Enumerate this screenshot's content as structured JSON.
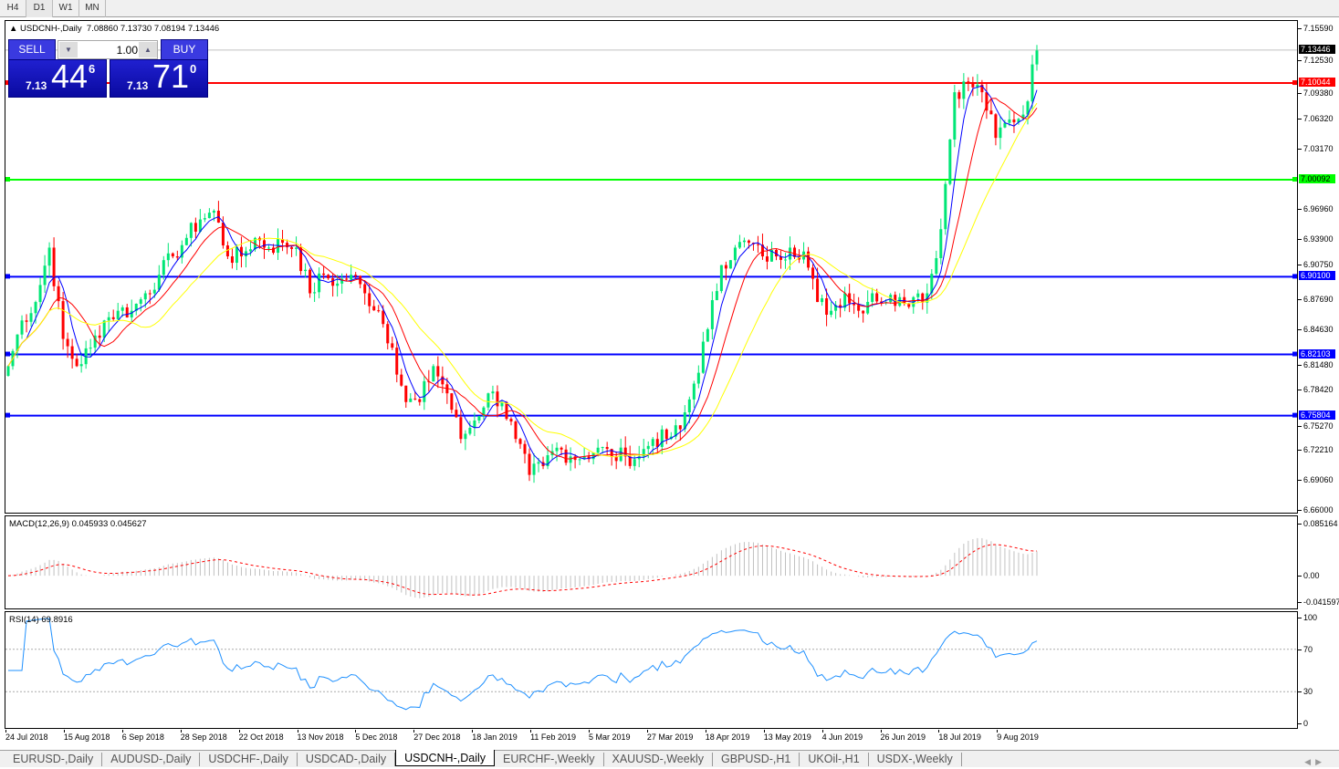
{
  "timeframes": [
    "H4",
    "D1",
    "W1",
    "MN"
  ],
  "active_timeframe": "D1",
  "chart": {
    "title": "USDCNH-,Daily",
    "ohlc": "7.08860 7.13730 7.08194 7.13446"
  },
  "trade_panel": {
    "sell_label": "SELL",
    "buy_label": "BUY",
    "lot": "1.00",
    "sell": {
      "prefix": "7.13",
      "main": "44",
      "sup": "6"
    },
    "buy": {
      "prefix": "7.13",
      "main": "71",
      "sup": "0"
    }
  },
  "price_axis": [
    "7.15590",
    "7.12530",
    "7.09380",
    "7.06320",
    "7.03170",
    "6.96960",
    "6.93900",
    "6.90750",
    "6.87690",
    "6.84630",
    "6.81480",
    "6.78420",
    "6.75270",
    "6.72210",
    "6.69060",
    "6.66000"
  ],
  "price_range": [
    6.66,
    7.1559
  ],
  "levels": [
    {
      "price": 7.13446,
      "label": "7.13446",
      "color": "#000000",
      "kind": "bid"
    },
    {
      "price": 7.10044,
      "label": "7.10044",
      "color": "#ff0000"
    },
    {
      "price": 7.00092,
      "label": "7.00092",
      "color": "#00ff00"
    },
    {
      "price": 6.901,
      "label": "6.90100",
      "color": "#0000ff"
    },
    {
      "price": 6.82103,
      "label": "6.82103",
      "color": "#0000ff"
    },
    {
      "price": 6.75804,
      "label": "6.75804",
      "color": "#0000ff"
    }
  ],
  "macd": {
    "title": "MACD(12,26,9) 0.045933 0.045627",
    "axis": [
      "0.085164",
      "0.00",
      "-0.041597"
    ],
    "range": [
      -0.041597,
      0.085164
    ]
  },
  "rsi": {
    "title": "RSI(14) 69.8916",
    "axis": [
      "100",
      "70",
      "30",
      "0"
    ],
    "levels": [
      70,
      30
    ]
  },
  "dates": [
    "24 Jul 2018",
    "15 Aug 2018",
    "6 Sep 2018",
    "28 Sep 2018",
    "22 Oct 2018",
    "13 Nov 2018",
    "5 Dec 2018",
    "27 Dec 2018",
    "18 Jan 2019",
    "11 Feb 2019",
    "5 Mar 2019",
    "27 Mar 2019",
    "18 Apr 2019",
    "13 May 2019",
    "4 Jun 2019",
    "26 Jun 2019",
    "18 Jul 2019",
    "9 Aug 2019"
  ],
  "tabs": [
    "EURUSD-,Daily",
    "AUDUSD-,Daily",
    "USDCHF-,Daily",
    "USDCAD-,Daily",
    "USDCNH-,Daily",
    "EURCHF-,Weekly",
    "XAUUSD-,Weekly",
    "GBPUSD-,H1",
    "UKOil-,H1",
    "USDX-,Weekly"
  ],
  "active_tab": "USDCNH-,Daily",
  "colors": {
    "bull": "#00e676",
    "bear": "#ff0000",
    "ma_fast": "#0000ff",
    "ma_mid": "#ff0000",
    "ma_slow": "#ffff00",
    "rsi": "#1e90ff",
    "macd_hist": "#c0c0c0",
    "macd_signal": "#ff0000"
  },
  "chart_data": {
    "type": "candlestick",
    "closes": [
      6.809,
      6.856,
      6.875,
      6.931,
      6.837,
      6.809,
      6.828,
      6.856,
      6.866,
      6.866,
      6.884,
      6.903,
      6.922,
      6.941,
      6.96,
      6.969,
      6.922,
      6.922,
      6.941,
      6.931,
      6.936,
      6.931,
      6.884,
      6.903,
      6.894,
      6.903,
      6.884,
      6.866,
      6.828,
      6.772,
      6.772,
      6.809,
      6.781,
      6.734,
      6.753,
      6.781,
      6.772,
      6.734,
      6.697,
      6.706,
      6.725,
      6.716,
      6.716,
      6.725,
      6.716,
      6.716,
      6.716,
      6.734,
      6.734,
      6.744,
      6.791,
      6.847,
      6.913,
      6.931,
      6.936,
      6.922,
      6.922,
      6.931,
      6.927,
      6.875,
      6.866,
      6.884,
      6.866,
      6.884,
      6.875,
      6.88,
      6.88,
      6.884,
      6.95,
      7.091,
      7.1,
      7.091,
      7.044,
      7.063,
      7.068,
      7.134
    ]
  }
}
